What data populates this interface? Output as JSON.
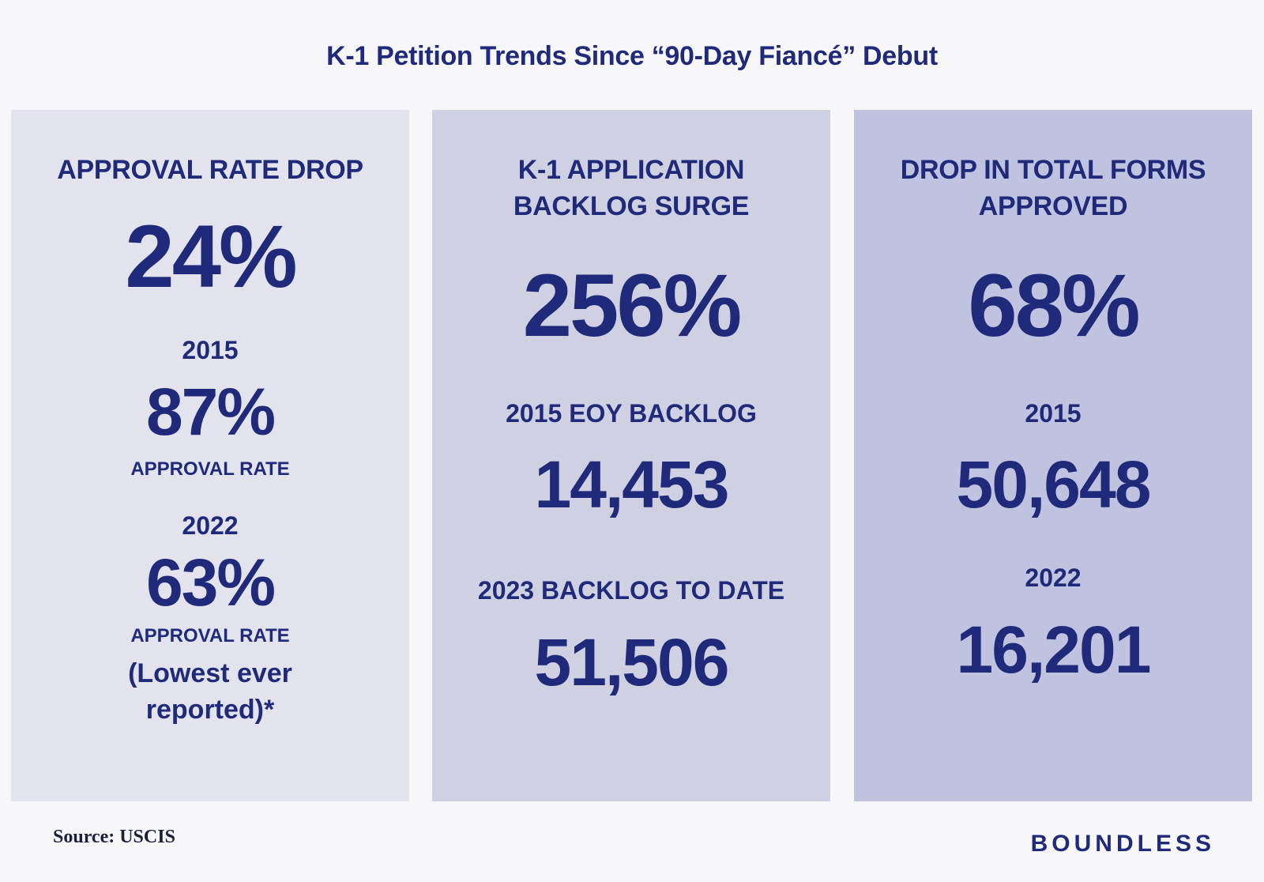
{
  "title": "K-1 Petition Trends Since “90-Day Fiancé” Debut",
  "panels": [
    {
      "heading_line1": "APPROVAL RATE DROP",
      "big_value": "24%",
      "year_a": "2015",
      "value_a": "87%",
      "caption_a": "APPROVAL RATE",
      "year_b": "2022",
      "value_b": "63%",
      "caption_b": "APPROVAL RATE",
      "note_line1": "(Lowest ever",
      "note_line2": "reported)*"
    },
    {
      "heading_line1": "K-1 APPLICATION",
      "heading_line2": "BACKLOG SURGE",
      "big_value": "256%",
      "label_a": "2015 EOY BACKLOG",
      "value_a": "14,453",
      "label_b": "2023 BACKLOG TO DATE",
      "value_b": "51,506"
    },
    {
      "heading_line1": "DROP IN TOTAL FORMS",
      "heading_line2": "APPROVED",
      "big_value": "68%",
      "year_a": "2015",
      "value_a": "50,648",
      "year_b": "2022",
      "value_b": "16,201"
    }
  ],
  "source": "Source: USCIS",
  "brand": "BOUNDLESS",
  "colors": {
    "text": "#1f2a7a",
    "background": "#f7f7fa",
    "panel_1": "#e3e3ee",
    "panel_2": "#cfd1e3",
    "panel_3": "#bfc3df"
  }
}
